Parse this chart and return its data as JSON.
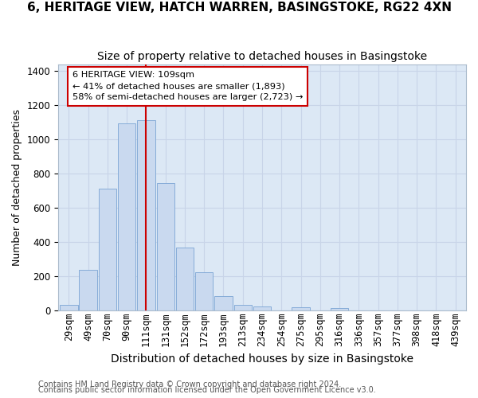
{
  "title1": "6, HERITAGE VIEW, HATCH WARREN, BASINGSTOKE, RG22 4XN",
  "title2": "Size of property relative to detached houses in Basingstoke",
  "xlabel": "Distribution of detached houses by size in Basingstoke",
  "ylabel": "Number of detached properties",
  "footnote1": "Contains HM Land Registry data © Crown copyright and database right 2024.",
  "footnote2": "Contains public sector information licensed under the Open Government Licence v3.0.",
  "bin_labels": [
    "29sqm",
    "49sqm",
    "70sqm",
    "90sqm",
    "111sqm",
    "131sqm",
    "152sqm",
    "172sqm",
    "193sqm",
    "213sqm",
    "234sqm",
    "254sqm",
    "275sqm",
    "295sqm",
    "316sqm",
    "336sqm",
    "357sqm",
    "377sqm",
    "398sqm",
    "418sqm",
    "439sqm"
  ],
  "bar_values": [
    30,
    235,
    710,
    1095,
    1110,
    745,
    365,
    220,
    80,
    30,
    20,
    0,
    15,
    0,
    10,
    0,
    0,
    0,
    0,
    0,
    0
  ],
  "bar_color": "#c9d9ef",
  "bar_edge_color": "#7aa4d4",
  "grid_color": "#c8d4e8",
  "vline_x": 4,
  "vline_color": "#cc0000",
  "annotation_text": "6 HERITAGE VIEW: 109sqm\n← 41% of detached houses are smaller (1,893)\n58% of semi-detached houses are larger (2,723) →",
  "annotation_box_color": "white",
  "annotation_box_edge_color": "#cc0000",
  "ylim": [
    0,
    1440
  ],
  "yticks": [
    0,
    200,
    400,
    600,
    800,
    1000,
    1200,
    1400
  ],
  "figure_bg": "#ffffff",
  "axes_bg": "#dce8f5",
  "title1_fontsize": 11,
  "title2_fontsize": 10,
  "xlabel_fontsize": 10,
  "ylabel_fontsize": 9,
  "tick_fontsize": 8.5,
  "footnote_fontsize": 7
}
